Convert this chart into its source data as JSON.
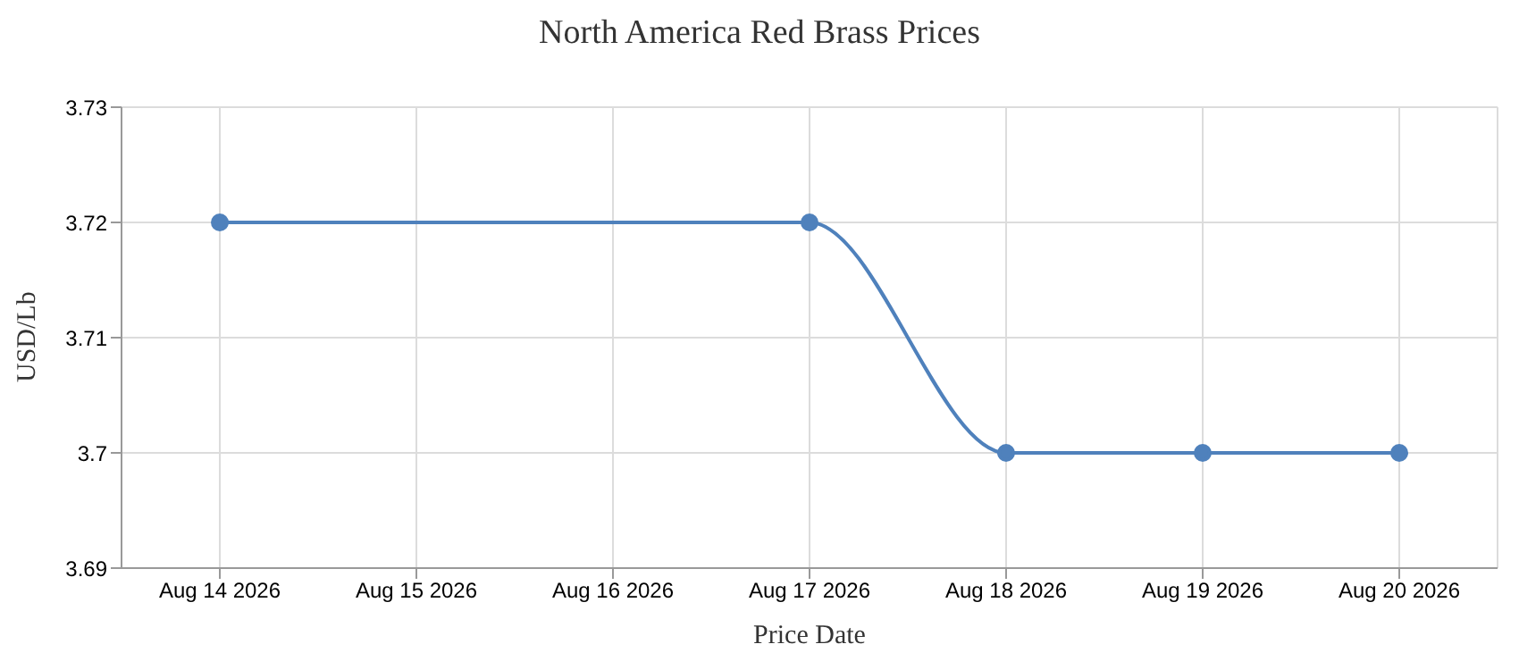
{
  "chart_data": {
    "type": "line",
    "title": "North America Red Brass Prices",
    "xlabel": "Price Date",
    "ylabel": "USD/Lb",
    "x": [
      "2026-08-14",
      "2026-08-17",
      "2026-08-18",
      "2026-08-19",
      "2026-08-20"
    ],
    "series": [
      {
        "color": "#4f81bc",
        "values": [
          3.72,
          3.72,
          3.7,
          3.7,
          3.7
        ]
      }
    ],
    "xlim": [
      "2026-08-13T12:00",
      "2026-08-20T12:00"
    ],
    "xticks": [
      {
        "value": "2026-08-14",
        "label": "Aug 14 2026"
      },
      {
        "value": "2026-08-15",
        "label": "Aug 15 2026"
      },
      {
        "value": "2026-08-16",
        "label": "Aug 16 2026"
      },
      {
        "value": "2026-08-17",
        "label": "Aug 17 2026"
      },
      {
        "value": "2026-08-18",
        "label": "Aug 18 2026"
      },
      {
        "value": "2026-08-19",
        "label": "Aug 19 2026"
      },
      {
        "value": "2026-08-20",
        "label": "Aug 20 2026"
      }
    ],
    "ylim": [
      3.69,
      3.73
    ],
    "yticks": [
      3.69,
      3.7,
      3.71,
      3.72,
      3.73
    ],
    "grid": true,
    "legend": false,
    "marker": "circle",
    "line_style": "solid"
  }
}
